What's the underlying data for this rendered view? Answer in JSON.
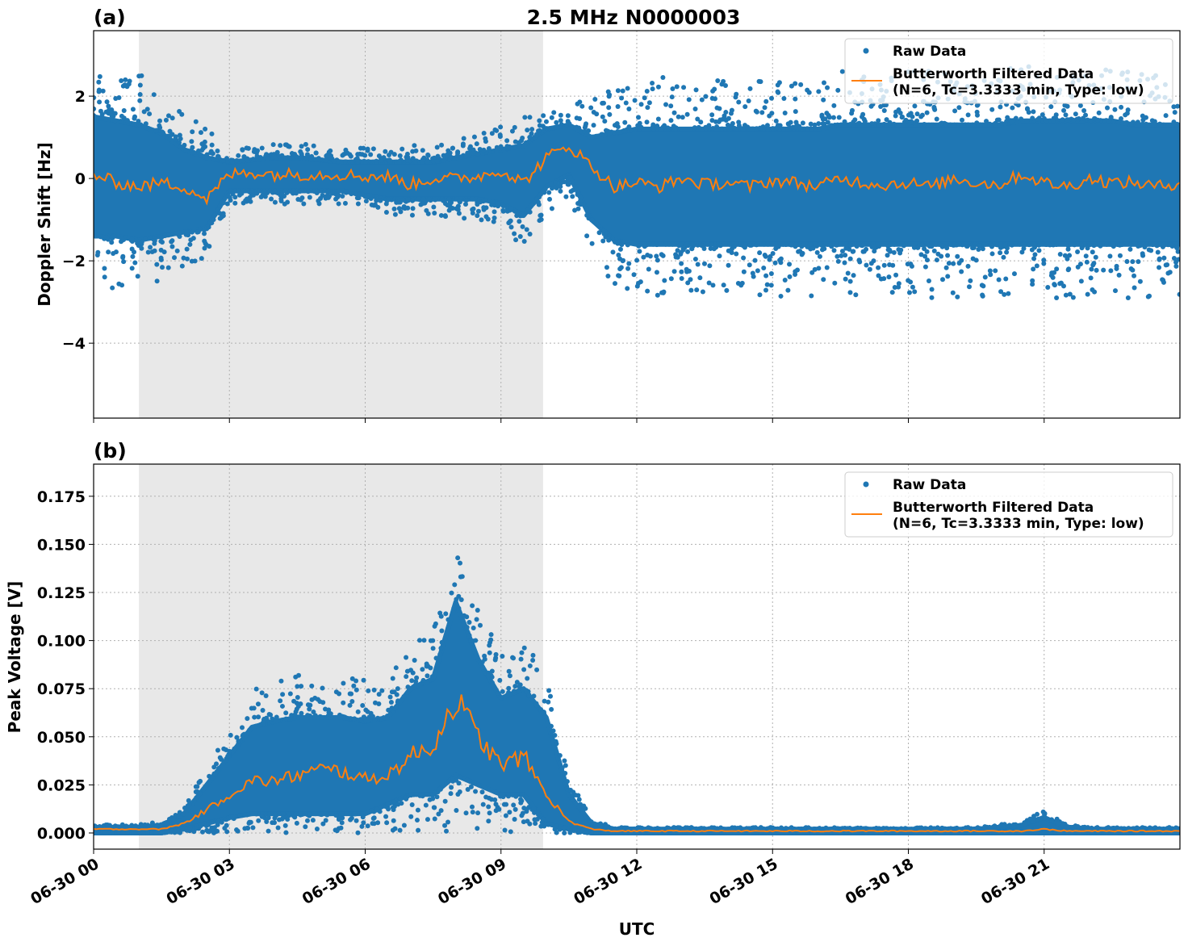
{
  "title": "2.5 MHz N0000003",
  "chart_data": [
    {
      "type": "scatter",
      "panel_label": "(a)",
      "title": "2.5 MHz N0000003",
      "xlabel": "",
      "ylabel": "Doppler Shift [Hz]",
      "x_unit": "hours UTC on 06-30",
      "xlim": [
        0,
        24
      ],
      "ylim": [
        -5.82,
        3.59
      ],
      "yticks": [
        2,
        0,
        -2,
        -4
      ],
      "ytick_labels": [
        "2",
        "0",
        "−2",
        "−4"
      ],
      "grid": true,
      "shaded_region": [
        1.0,
        9.93
      ],
      "legend": {
        "placement": "top-right",
        "entries": [
          "Raw Data",
          "Butterworth Filtered Data",
          "(N=6, Tc=3.3333 min, Type: low)"
        ]
      },
      "colors": {
        "raw": "#1f77b4",
        "filtered": "#ff7f0e",
        "shade": "#e8e8e8"
      },
      "series": [
        {
          "name": "Butterworth Filtered Data",
          "kind": "line",
          "x_step_hours": 0.5,
          "values": [
            0.1,
            -0.1,
            -0.2,
            -0.1,
            -0.2,
            -0.5,
            0.1,
            0.15,
            0.1,
            0.1,
            0.1,
            0.1,
            0.05,
            0.05,
            -0.15,
            0,
            0,
            0.05,
            0.2,
            -0.1,
            0.5,
            0.8,
            0.3,
            -0.2,
            -0.1,
            -0.2,
            0,
            -0.15,
            -0.1,
            -0.2,
            -0.05,
            -0.1,
            -0.2,
            0,
            -0.1,
            -0.15,
            -0.1,
            -0.2,
            0,
            -0.1,
            -0.15,
            0.1,
            -0.1,
            -0.2,
            0,
            -0.1,
            -0.1,
            -0.2,
            -0.1
          ]
        },
        {
          "name": "Raw Data",
          "kind": "scatter_band",
          "x_step_hours": 0.5,
          "lower": [
            -1.4,
            -1.4,
            -1.5,
            -1.4,
            -1.3,
            -1.2,
            -0.3,
            -0.3,
            -0.3,
            -0.3,
            -0.3,
            -0.3,
            -0.4,
            -0.5,
            -0.5,
            -0.5,
            -0.5,
            -0.5,
            -0.6,
            -0.9,
            -0.2,
            0.1,
            -1.0,
            -1.5,
            -1.6,
            -1.6,
            -1.6,
            -1.6,
            -1.6,
            -1.6,
            -1.6,
            -1.6,
            -1.6,
            -1.6,
            -1.6,
            -1.6,
            -1.6,
            -1.6,
            -1.6,
            -1.6,
            -1.6,
            -1.6,
            -1.6,
            -1.6,
            -1.6,
            -1.6,
            -1.6,
            -1.6,
            -1.6
          ],
          "upper": [
            1.5,
            1.4,
            1.3,
            1.1,
            0.7,
            0.5,
            0.4,
            0.45,
            0.5,
            0.5,
            0.45,
            0.4,
            0.4,
            0.4,
            0.4,
            0.4,
            0.5,
            0.6,
            0.7,
            0.8,
            1.2,
            1.3,
            1.0,
            1.1,
            1.2,
            1.2,
            1.2,
            1.2,
            1.2,
            1.2,
            1.2,
            1.2,
            1.2,
            1.3,
            1.3,
            1.3,
            1.3,
            1.3,
            1.3,
            1.3,
            1.3,
            1.4,
            1.4,
            1.4,
            1.4,
            1.4,
            1.3,
            1.3,
            1.3
          ]
        }
      ]
    },
    {
      "type": "scatter",
      "panel_label": "(b)",
      "xlabel": "UTC",
      "ylabel": "Peak Voltage [V]",
      "x_unit": "hours UTC on 06-30",
      "xlim": [
        0,
        24
      ],
      "ylim": [
        -0.0084,
        0.1917
      ],
      "yticks": [
        0,
        0.025,
        0.05,
        0.075,
        0.1,
        0.125,
        0.15,
        0.175
      ],
      "ytick_labels": [
        "0.000",
        "0.025",
        "0.050",
        "0.075",
        "0.100",
        "0.125",
        "0.150",
        "0.175"
      ],
      "xtick_values": [
        0,
        3,
        6,
        9,
        12,
        15,
        18,
        21
      ],
      "xtick_labels": [
        "06-30 00",
        "06-30 03",
        "06-30 06",
        "06-30 09",
        "06-30 12",
        "06-30 15",
        "06-30 18",
        "06-30 21"
      ],
      "grid": true,
      "shaded_region": [
        1.0,
        9.93
      ],
      "legend": {
        "placement": "top-right",
        "entries": [
          "Raw Data",
          "Butterworth Filtered Data",
          "(N=6, Tc=3.3333 min, Type: low)"
        ]
      },
      "series": [
        {
          "name": "Butterworth Filtered Data",
          "kind": "line",
          "x_step_hours": 0.5,
          "values": [
            0.002,
            0.002,
            0.002,
            0.002,
            0.005,
            0.012,
            0.02,
            0.027,
            0.027,
            0.03,
            0.033,
            0.032,
            0.028,
            0.03,
            0.04,
            0.045,
            0.07,
            0.05,
            0.035,
            0.04,
            0.02,
            0.006,
            0.002,
            0.001,
            0.001,
            0.001,
            0.001,
            0.001,
            0.001,
            0.001,
            0.001,
            0.001,
            0.001,
            0.001,
            0.001,
            0.001,
            0.001,
            0.001,
            0.001,
            0.001,
            0.001,
            0.001,
            0.002,
            0.001,
            0.001,
            0.001,
            0.001,
            0.001,
            0.001
          ]
        },
        {
          "name": "Raw Data",
          "kind": "scatter_band",
          "x_step_hours": 0.5,
          "lower": [
            0,
            0,
            0,
            0,
            0.002,
            0.005,
            0.008,
            0.01,
            0.01,
            0.01,
            0.01,
            0.01,
            0.01,
            0.015,
            0.02,
            0.02,
            0.03,
            0.025,
            0.02,
            0.02,
            0.005,
            0.002,
            0,
            0,
            0,
            0,
            0,
            0,
            0,
            0,
            0,
            0,
            0,
            0,
            0,
            0,
            0,
            0,
            0,
            0,
            0,
            0,
            0,
            0,
            0,
            0,
            0,
            0,
            0
          ],
          "upper": [
            0.003,
            0.003,
            0.003,
            0.004,
            0.01,
            0.025,
            0.04,
            0.055,
            0.058,
            0.06,
            0.06,
            0.06,
            0.058,
            0.06,
            0.075,
            0.08,
            0.12,
            0.09,
            0.07,
            0.075,
            0.06,
            0.02,
            0.005,
            0.002,
            0.002,
            0.002,
            0.002,
            0.002,
            0.002,
            0.002,
            0.002,
            0.002,
            0.002,
            0.002,
            0.002,
            0.002,
            0.002,
            0.002,
            0.002,
            0.002,
            0.003,
            0.004,
            0.008,
            0.003,
            0.002,
            0.002,
            0.002,
            0.002,
            0.002
          ]
        }
      ]
    }
  ]
}
